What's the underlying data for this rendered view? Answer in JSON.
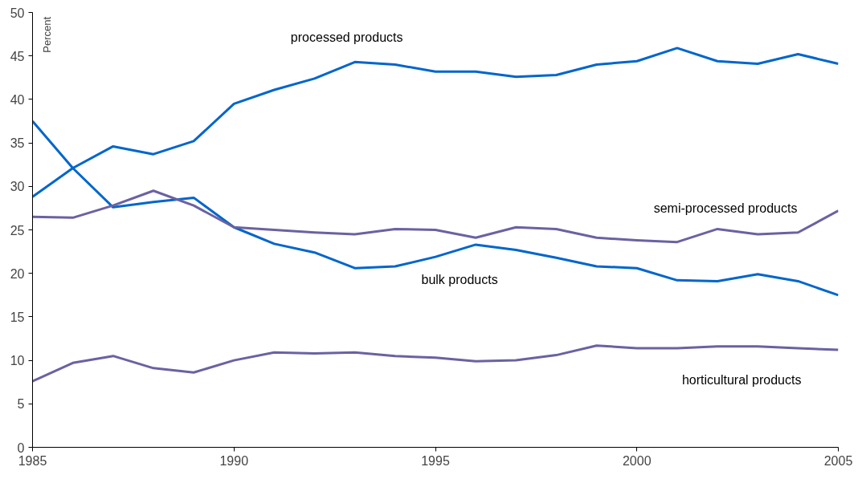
{
  "chart_data": {
    "type": "line",
    "ylabel": "Percent",
    "x": [
      1985,
      1986,
      1987,
      1988,
      1989,
      1990,
      1991,
      1992,
      1993,
      1994,
      1995,
      1996,
      1997,
      1998,
      1999,
      2000,
      2001,
      2002,
      2003,
      2004,
      2005
    ],
    "series": [
      {
        "name": "processed products",
        "color": "#0066cc",
        "values": [
          28.8,
          32.1,
          34.6,
          33.7,
          35.2,
          39.5,
          41.1,
          42.4,
          44.3,
          44.0,
          43.2,
          43.2,
          42.6,
          42.8,
          44.0,
          44.4,
          45.9,
          44.4,
          44.1,
          45.2,
          44.1
        ]
      },
      {
        "name": "bulk products",
        "color": "#0066cc",
        "values": [
          37.5,
          32.1,
          27.6,
          28.2,
          28.7,
          25.3,
          23.4,
          22.4,
          20.6,
          20.8,
          21.9,
          23.3,
          22.7,
          21.8,
          20.8,
          20.6,
          19.2,
          19.1,
          19.9,
          19.1,
          17.5
        ]
      },
      {
        "name": "semi-processed products",
        "color": "#6a62a2",
        "values": [
          26.5,
          26.4,
          27.8,
          29.5,
          27.8,
          25.3,
          25.0,
          24.7,
          24.5,
          25.1,
          25.0,
          24.1,
          25.3,
          25.1,
          24.1,
          23.8,
          23.6,
          25.1,
          24.5,
          24.7,
          27.2
        ]
      },
      {
        "name": "horticultural products",
        "color": "#6a62a2",
        "values": [
          7.6,
          9.7,
          10.5,
          9.1,
          8.6,
          10.0,
          10.9,
          10.8,
          10.9,
          10.5,
          10.3,
          9.9,
          10.0,
          10.6,
          11.7,
          11.4,
          11.4,
          11.6,
          11.6,
          11.4,
          11.2
        ]
      }
    ],
    "xlim": [
      1985,
      2005
    ],
    "xticks": [
      1985,
      1990,
      1995,
      2000,
      2005
    ],
    "ylim": [
      0,
      50
    ],
    "yticks": [
      0,
      5,
      10,
      15,
      20,
      25,
      30,
      35,
      40,
      45,
      50
    ],
    "grid": false,
    "marker": "none",
    "line_style": "solid"
  }
}
